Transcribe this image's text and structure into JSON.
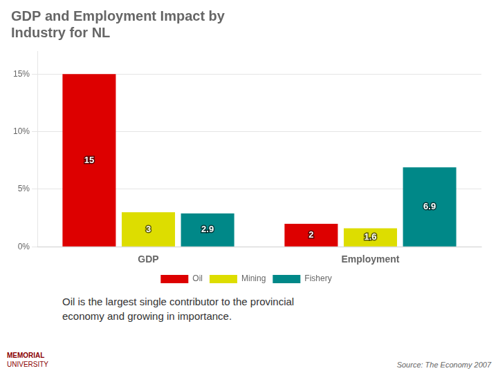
{
  "chart_data": {
    "type": "bar",
    "title": "GDP and Employment Impact by\nIndustry for NL",
    "categories": [
      "GDP",
      "Employment"
    ],
    "series": [
      {
        "name": "Oil",
        "color": "#dd0000",
        "values": [
          15,
          2
        ]
      },
      {
        "name": "Mining",
        "color": "#dddd00",
        "values": [
          3,
          1.6
        ]
      },
      {
        "name": "Fishery",
        "color": "#008888",
        "values": [
          2.9,
          6.9
        ]
      }
    ],
    "ylim": [
      0,
      17
    ],
    "yticks": [
      {
        "value": 0,
        "label": "0%"
      },
      {
        "value": 5,
        "label": "5%"
      },
      {
        "value": 10,
        "label": "10%"
      },
      {
        "value": 15,
        "label": "15%"
      }
    ],
    "grid": true,
    "legend": "bottom",
    "data_labels": true,
    "annotation": "Oil is the largest single contributor to the provincial\neconomy and growing in importance.",
    "source": "Source: The Economy 2007",
    "logo_text": [
      "MEMORIAL",
      "UNIVERSITY"
    ]
  }
}
